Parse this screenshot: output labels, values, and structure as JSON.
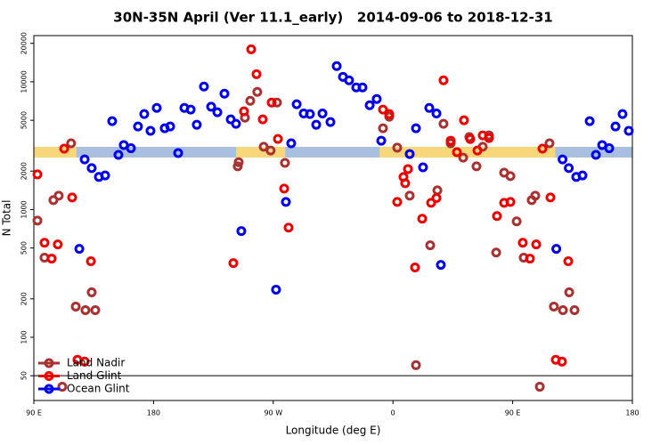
{
  "chart_data": {
    "type": "scatter",
    "title": "30N-35N April (Ver 11.1_early)   2014-09-06 to 2018-12-31",
    "xlabel": "Longitude (deg E)",
    "ylabel": "N Total",
    "xlim": [
      90,
      540
    ],
    "xticks": [
      {
        "value": 90,
        "label": "90 E"
      },
      180,
      {
        "value": 270,
        "label": "90 W"
      },
      {
        "value": 360,
        "label": "0"
      },
      {
        "value": 450,
        "label": "90 E"
      },
      {
        "value": 540,
        "label": "180"
      }
    ],
    "ylim": [
      32,
      23000
    ],
    "log_y": true,
    "yticks": [
      50,
      100,
      200,
      500,
      1000,
      2000,
      5000,
      10000,
      20000
    ],
    "hline": 50,
    "land": [
      [
        90,
        122
      ],
      [
        242,
        279
      ],
      [
        350,
        482
      ]
    ],
    "land_color": "#f7d77a",
    "ocean_color": "#a9bfe0",
    "legend": "lower left",
    "series": [
      {
        "name": "Land Nadir",
        "color": "#a83232",
        "x": [
          92.7,
          98,
          104.7,
          108.7,
          118,
          121.5,
          128.8,
          133.5,
          136.2,
          111.4,
          243.3,
          244,
          248.7,
          252.7,
          258,
          262.8,
          268,
          272.8,
          278.8,
          352.5,
          357.2,
          363.2,
          372.6,
          377.3,
          388,
          393.4,
          398,
          403.4,
          412.8,
          417.4,
          422.8,
          427.5,
          432.2,
          437.6,
          443.6,
          448.3,
          453,
          458.3,
          464.3,
          467,
          477.7,
          470.4,
          481,
          487.8,
          492.5,
          496.5
        ],
        "values": [
          820,
          420,
          1186,
          1285,
          3300,
          174,
          163,
          225,
          163,
          41,
          2180,
          2350,
          5240,
          7100,
          8340,
          3100,
          2900,
          6880,
          2320,
          4330,
          5330,
          3050,
          1285,
          60.5,
          525,
          1413,
          4690,
          3300,
          2550,
          3690,
          2180,
          3100,
          3810,
          461,
          1945,
          1827,
          808,
          420,
          1186,
          1285,
          3300,
          41,
          174,
          163,
          225,
          163
        ]
      },
      {
        "name": "Land Glint",
        "color": "#ee0000",
        "x": [
          92.7,
          98,
          103.4,
          108,
          112.8,
          118.8,
          122.8,
          128.2,
          132.9,
          240,
          248,
          253.4,
          257.4,
          262.1,
          268.8,
          273.5,
          278.2,
          281.5,
          352.5,
          357.2,
          363.2,
          367.9,
          369.2,
          371.3,
          376.6,
          382,
          388.7,
          392.7,
          398,
          403.4,
          408.1,
          413.4,
          418.1,
          423.5,
          427.5,
          432.2,
          438.2,
          443.6,
          448.3,
          457.6,
          463,
          467.7,
          472.4,
          478.4,
          482.4,
          487.1,
          491.8
        ],
        "values": [
          1885,
          550,
          413,
          533,
          3000,
          1244,
          66.7,
          64.5,
          394,
          381,
          5870,
          17980,
          11480,
          5080,
          6880,
          3570,
          1460,
          722,
          6060,
          5590,
          1148,
          1797,
          1607,
          2075,
          352,
          848,
          1130,
          1230,
          10270,
          3460,
          2810,
          5000,
          3560,
          2900,
          3810,
          3630,
          889,
          1130,
          1148,
          550,
          413,
          533,
          3000,
          1244,
          66.7,
          64.5,
          394
        ]
      },
      {
        "name": "Ocean Glint",
        "color": "#0000ee",
        "x": [
          124.2,
          128.2,
          133.5,
          138.9,
          143.6,
          148.9,
          153.6,
          157.6,
          163,
          168.3,
          173,
          177.7,
          182.4,
          188.4,
          192.5,
          198.5,
          203.2,
          207.9,
          212.5,
          217.9,
          223.3,
          228,
          233.3,
          238,
          242,
          246,
          272.1,
          279.5,
          283.5,
          287.6,
          292.9,
          297.6,
          302.3,
          307,
          313,
          317.7,
          322.4,
          327,
          332.4,
          337.1,
          342.5,
          347.8,
          351.2,
          372.6,
          377.3,
          382.6,
          387.3,
          392.7,
          396,
          507.9,
          512.6,
          517.3,
          522.6,
          527.3,
          532.6,
          537.3,
          482.8,
          487.5,
          492.2,
          497.8,
          502.5
        ],
        "values": [
          492,
          2470,
          2110,
          1800,
          1850,
          4920,
          2680,
          3200,
          3020,
          4470,
          5590,
          4130,
          6250,
          4330,
          4470,
          2770,
          6250,
          6060,
          4610,
          9180,
          6380,
          5780,
          8070,
          5080,
          4690,
          678,
          236,
          1148,
          3300,
          6670,
          5650,
          5590,
          4610,
          5650,
          4840,
          13270,
          10940,
          10270,
          9040,
          9040,
          6550,
          7340,
          3460,
          2720,
          4330,
          2140,
          6250,
          5650,
          369,
          4920,
          2680,
          3200,
          3020,
          4470,
          5590,
          4130,
          492,
          2470,
          2110,
          1800,
          1850
        ]
      }
    ]
  }
}
